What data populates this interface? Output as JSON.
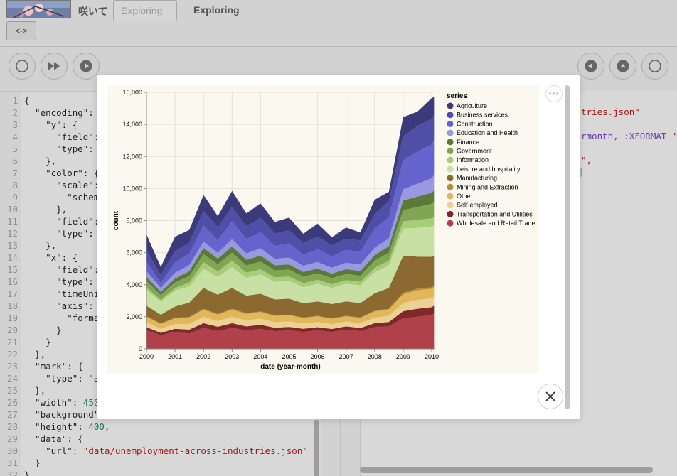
{
  "header": {
    "title": "咲いて",
    "search_placeholder": "Exploring",
    "status": "Exploring",
    "swap_label": "<->"
  },
  "toolbar": {
    "left_icons": [
      "circle-icon",
      "fast-forward-icon",
      "play-icon"
    ],
    "right_icons": [
      "back-icon",
      "eject-icon",
      "circle-icon"
    ]
  },
  "editor": {
    "lines": [
      {
        "n": "1",
        "t": "{"
      },
      {
        "n": "2",
        "t": "  \"encoding\":"
      },
      {
        "n": "3",
        "t": "    \"y\": {"
      },
      {
        "n": "4",
        "t": "      \"field\":"
      },
      {
        "n": "5",
        "t": "      \"type\":"
      },
      {
        "n": "6",
        "t": "    },"
      },
      {
        "n": "7",
        "t": "    \"color\": {"
      },
      {
        "n": "8",
        "t": "      \"scale\":"
      },
      {
        "n": "9",
        "t": "        \"schem"
      },
      {
        "n": "10",
        "t": "      },"
      },
      {
        "n": "11",
        "t": "      \"field\":"
      },
      {
        "n": "12",
        "t": "      \"type\":"
      },
      {
        "n": "13",
        "t": "    },"
      },
      {
        "n": "14",
        "t": "    \"x\": {"
      },
      {
        "n": "15",
        "t": "      \"field\":"
      },
      {
        "n": "16",
        "t": "      \"type\":"
      },
      {
        "n": "17",
        "t": "      \"timeUni"
      },
      {
        "n": "18",
        "t": "      \"axis\":"
      },
      {
        "n": "19",
        "t": "        \"forma"
      },
      {
        "n": "20",
        "t": "      }"
      },
      {
        "n": "21",
        "t": "    }"
      },
      {
        "n": "22",
        "t": "  },"
      },
      {
        "n": "23",
        "t": "  \"mark\": {"
      },
      {
        "n": "24",
        "t": "    \"type\": \"a"
      },
      {
        "n": "25",
        "t": "  },"
      },
      {
        "n": "26",
        "t": "  \"width\": 450"
      },
      {
        "n": "27",
        "t": "  \"background\""
      },
      {
        "n": "28",
        "t": "  \"height\": 400,"
      },
      {
        "n": "29",
        "t": "  \"data\": {"
      },
      {
        "n": "30",
        "t": "    \"url\": \"data/unemployment-across-industries.json\""
      },
      {
        "n": "31",
        "t": "  }"
      },
      {
        "n": "32",
        "t": "}"
      }
    ]
  },
  "right_pane": {
    "line1": "tries.json\"",
    "line2_a": "rmonth,",
    "line2_b": ":XFORMAT",
    "line3": "\",",
    "line4": "]"
  },
  "modal": {
    "more_label": "•••",
    "close_icon": "close-icon"
  },
  "chart_data": {
    "type": "area",
    "stacked": true,
    "xlabel": "date (year-month)",
    "ylabel": "count",
    "ylim": [
      0,
      16000
    ],
    "yticks": [
      "0",
      "2,000",
      "4,000",
      "6,000",
      "8,000",
      "10,000",
      "12,000",
      "14,000",
      "16,000"
    ],
    "xticks": [
      "2000",
      "2001",
      "2002",
      "2003",
      "2004",
      "2005",
      "2006",
      "2007",
      "2008",
      "2009",
      "2010"
    ],
    "legend_title": "series",
    "legend_position": "right",
    "x": [
      "2000-01",
      "2000-07",
      "2001-01",
      "2001-07",
      "2002-01",
      "2002-07",
      "2003-01",
      "2003-07",
      "2004-01",
      "2004-07",
      "2005-01",
      "2005-07",
      "2006-01",
      "2006-07",
      "2007-01",
      "2007-07",
      "2008-01",
      "2008-07",
      "2009-01",
      "2009-07",
      "2010-01",
      "2010-02"
    ],
    "series": [
      {
        "name": "Agriculture",
        "color": "#3b3a7a",
        "values": [
          1000,
          500,
          900,
          800,
          1000,
          700,
          1000,
          800,
          900,
          700,
          800,
          600,
          800,
          500,
          700,
          500,
          900,
          600,
          1200,
          900,
          1300,
          1200
        ]
      },
      {
        "name": "Business services",
        "color": "#4f4fa8",
        "values": [
          700,
          500,
          700,
          700,
          900,
          800,
          900,
          800,
          900,
          800,
          800,
          700,
          800,
          700,
          700,
          700,
          900,
          1000,
          1500,
          1600,
          1600,
          1500
        ]
      },
      {
        "name": "Construction",
        "color": "#6563cc",
        "values": [
          600,
          300,
          650,
          700,
          1000,
          800,
          1100,
          900,
          1000,
          800,
          900,
          700,
          800,
          700,
          800,
          800,
          1200,
          1300,
          1800,
          2000,
          2100,
          2200
        ]
      },
      {
        "name": "Education and Health",
        "color": "#9a98de",
        "values": [
          350,
          250,
          350,
          380,
          400,
          350,
          450,
          400,
          450,
          400,
          420,
          380,
          400,
          370,
          400,
          400,
          450,
          500,
          700,
          800,
          900,
          950
        ]
      },
      {
        "name": "Finance",
        "color": "#5a7a38",
        "values": [
          250,
          200,
          250,
          300,
          400,
          350,
          400,
          350,
          380,
          320,
          330,
          300,
          300,
          280,
          300,
          300,
          350,
          400,
          600,
          650,
          700,
          720
        ]
      },
      {
        "name": "Government",
        "color": "#80a653",
        "values": [
          400,
          300,
          350,
          400,
          500,
          450,
          500,
          450,
          480,
          430,
          430,
          400,
          400,
          380,
          380,
          380,
          450,
          500,
          700,
          800,
          900,
          950
        ]
      },
      {
        "name": "Information",
        "color": "#a9cc7a",
        "values": [
          150,
          120,
          150,
          250,
          400,
          350,
          400,
          330,
          320,
          280,
          280,
          250,
          250,
          230,
          230,
          220,
          280,
          300,
          450,
          500,
          500,
          520
        ]
      },
      {
        "name": "Leisure and hospitality",
        "color": "#c9e0a5",
        "values": [
          1000,
          800,
          1000,
          1000,
          1200,
          1100,
          1300,
          1100,
          1200,
          1100,
          1100,
          1000,
          1100,
          1000,
          1100,
          1100,
          1300,
          1400,
          1700,
          1800,
          1900,
          1900
        ]
      },
      {
        "name": "Manufacturing",
        "color": "#8b6930",
        "values": [
          650,
          550,
          700,
          900,
          1300,
          1200,
          1300,
          1100,
          1100,
          1000,
          1000,
          900,
          900,
          900,
          900,
          900,
          1100,
          1300,
          2300,
          2000,
          1900,
          1850
        ]
      },
      {
        "name": "Mining and Extraction",
        "color": "#b88f35",
        "values": [
          40,
          30,
          40,
          40,
          50,
          50,
          50,
          40,
          40,
          30,
          30,
          30,
          30,
          30,
          30,
          30,
          40,
          40,
          100,
          100,
          90,
          90
        ]
      },
      {
        "name": "Other",
        "color": "#e2b75a",
        "values": [
          350,
          300,
          350,
          400,
          450,
          400,
          450,
          400,
          420,
          380,
          380,
          350,
          350,
          330,
          330,
          330,
          380,
          400,
          550,
          600,
          600,
          600
        ]
      },
      {
        "name": "Self-employed",
        "color": "#ecd196",
        "values": [
          300,
          250,
          300,
          350,
          400,
          350,
          400,
          380,
          380,
          350,
          350,
          320,
          330,
          300,
          300,
          300,
          350,
          380,
          500,
          550,
          550,
          550
        ]
      },
      {
        "name": "Transportation and Utilities",
        "color": "#82282c",
        "values": [
          200,
          150,
          200,
          250,
          300,
          280,
          300,
          250,
          250,
          220,
          220,
          200,
          200,
          190,
          200,
          200,
          250,
          280,
          450,
          500,
          500,
          500
        ]
      },
      {
        "name": "Wholesale and Retail Trade",
        "color": "#b0404a",
        "values": [
          1150,
          850,
          1050,
          950,
          1300,
          1100,
          1300,
          1150,
          1250,
          1100,
          1150,
          1050,
          1150,
          1050,
          1200,
          1100,
          1350,
          1400,
          1900,
          2000,
          2100,
          2200
        ]
      }
    ]
  }
}
